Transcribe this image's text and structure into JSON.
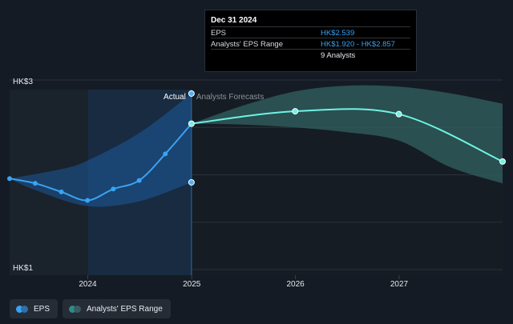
{
  "chart_data": {
    "type": "line",
    "currency": "HK$",
    "y_tick_labels": [
      "HK$3",
      "HK$1"
    ],
    "ylim": [
      1,
      3
    ],
    "x_tick_labels": [
      "2024",
      "2025",
      "2026",
      "2027"
    ],
    "xlim": [
      "2023-04-01",
      "2027-12-31"
    ],
    "divider_date": "2024-12-31",
    "region_labels": {
      "actual": "Actual",
      "forecast": "Analysts Forecasts"
    },
    "series": [
      {
        "name": "EPS",
        "color": "#39a3f4",
        "points": [
          {
            "date": "2023-04-01",
            "value": 1.96
          },
          {
            "date": "2023-06-30",
            "value": 1.91
          },
          {
            "date": "2023-09-30",
            "value": 1.82
          },
          {
            "date": "2023-12-31",
            "value": 1.73
          },
          {
            "date": "2024-03-31",
            "value": 1.85
          },
          {
            "date": "2024-06-30",
            "value": 1.94
          },
          {
            "date": "2024-09-30",
            "value": 2.22
          },
          {
            "date": "2024-12-31",
            "value": 2.539
          }
        ]
      },
      {
        "name": "EPS forecast",
        "color": "#6ff2e3",
        "points": [
          {
            "date": "2024-12-31",
            "value": 2.539
          },
          {
            "date": "2025-12-31",
            "value": 2.67
          },
          {
            "date": "2026-12-31",
            "value": 2.64
          },
          {
            "date": "2027-12-31",
            "value": 2.14
          }
        ]
      }
    ],
    "actual_range": {
      "color": "#1e5a99",
      "upper": [
        {
          "date": "2023-04-01",
          "value": 1.96
        },
        {
          "date": "2023-09-30",
          "value": 2.06
        },
        {
          "date": "2023-12-31",
          "value": 2.15
        },
        {
          "date": "2024-06-30",
          "value": 2.44
        },
        {
          "date": "2024-12-31",
          "value": 2.857
        }
      ],
      "lower": [
        {
          "date": "2024-12-31",
          "value": 1.92
        },
        {
          "date": "2024-06-30",
          "value": 1.72
        },
        {
          "date": "2023-12-31",
          "value": 1.67
        },
        {
          "date": "2023-06-30",
          "value": 1.84
        },
        {
          "date": "2023-04-01",
          "value": 1.96
        }
      ]
    },
    "forecast_range": {
      "color": "#2f5e5c",
      "upper": [
        {
          "date": "2024-12-31",
          "value": 2.539
        },
        {
          "date": "2025-06-30",
          "value": 2.73
        },
        {
          "date": "2025-12-31",
          "value": 2.88
        },
        {
          "date": "2026-06-30",
          "value": 2.94
        },
        {
          "date": "2026-12-31",
          "value": 2.93
        },
        {
          "date": "2027-06-30",
          "value": 2.86
        },
        {
          "date": "2027-12-31",
          "value": 2.75
        }
      ],
      "lower": [
        {
          "date": "2027-12-31",
          "value": 1.91
        },
        {
          "date": "2027-06-30",
          "value": 2.08
        },
        {
          "date": "2026-12-31",
          "value": 2.36
        },
        {
          "date": "2026-06-30",
          "value": 2.45
        },
        {
          "date": "2025-12-31",
          "value": 2.5
        },
        {
          "date": "2025-06-30",
          "value": 2.53
        },
        {
          "date": "2024-12-31",
          "value": 2.539
        }
      ]
    },
    "range_markers": [
      {
        "date": "2024-12-31",
        "value": 2.857
      },
      {
        "date": "2024-12-31",
        "value": 1.92
      }
    ]
  },
  "tooltip": {
    "title": "Dec 31 2024",
    "rows": [
      {
        "label": "EPS",
        "value": "HK$2.539",
        "value_color": "#39a3f4"
      },
      {
        "label": "Analysts' EPS Range",
        "value": "HK$1.920 - HK$2.857",
        "value_color": "#39a3f4"
      },
      {
        "label": "",
        "value": "9 Analysts",
        "value_color": "#e6e9ee"
      }
    ]
  },
  "legend": [
    {
      "label": "EPS",
      "colors": [
        "#39a3f4",
        "#2d6fa8"
      ]
    },
    {
      "label": "Analysts' EPS Range",
      "colors": [
        "#2a8f86",
        "#3a5a66"
      ]
    }
  ]
}
